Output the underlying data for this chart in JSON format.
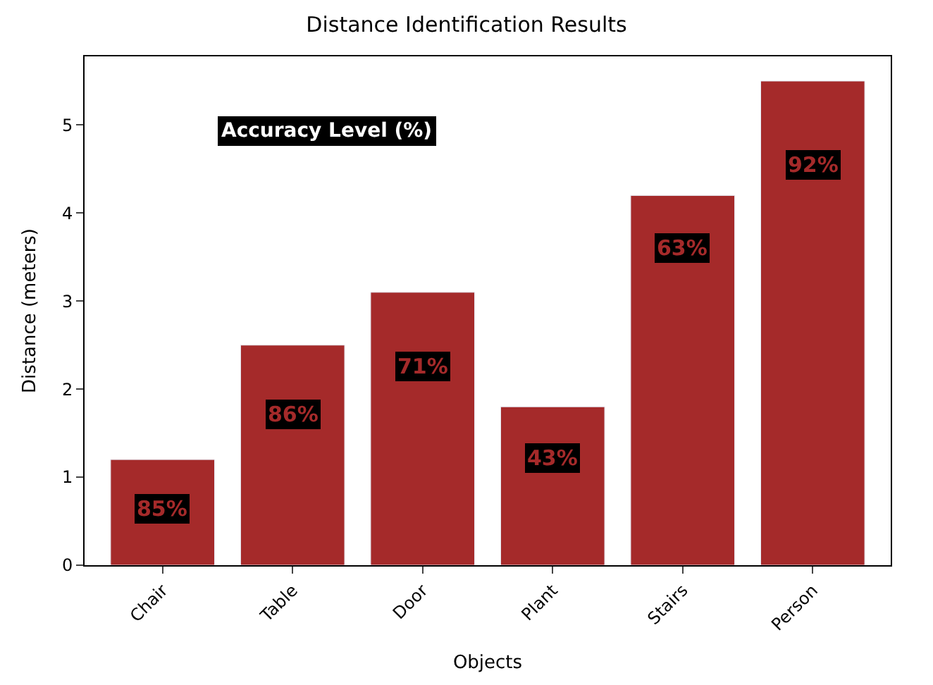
{
  "chart_data": {
    "type": "bar",
    "title": "Distance Identification Results",
    "xlabel": "Objects",
    "ylabel": "Distance (meters)",
    "categories": [
      "Chair",
      "Table",
      "Door",
      "Plant",
      "Stairs",
      "Person"
    ],
    "values": [
      1.2,
      2.5,
      3.1,
      1.8,
      4.2,
      5.5
    ],
    "color": "#a52a2a",
    "ylim": [
      0,
      5.78
    ],
    "yticks": [
      0,
      1,
      2,
      3,
      4,
      5
    ],
    "legend": false,
    "annotations": [
      "Accuracy Level (%)",
      {
        "text": "85%",
        "x": "Chair",
        "y": 0.64
      },
      {
        "text": "86%",
        "x": "Table",
        "y": 1.72
      },
      {
        "text": "71%",
        "x": "Door",
        "y": 2.26
      },
      {
        "text": "43%",
        "x": "Plant",
        "y": 1.21
      },
      {
        "text": "63%",
        "x": "Stairs",
        "y": 3.6
      },
      {
        "text": "92%",
        "x": "Person",
        "y": 4.55
      }
    ]
  }
}
